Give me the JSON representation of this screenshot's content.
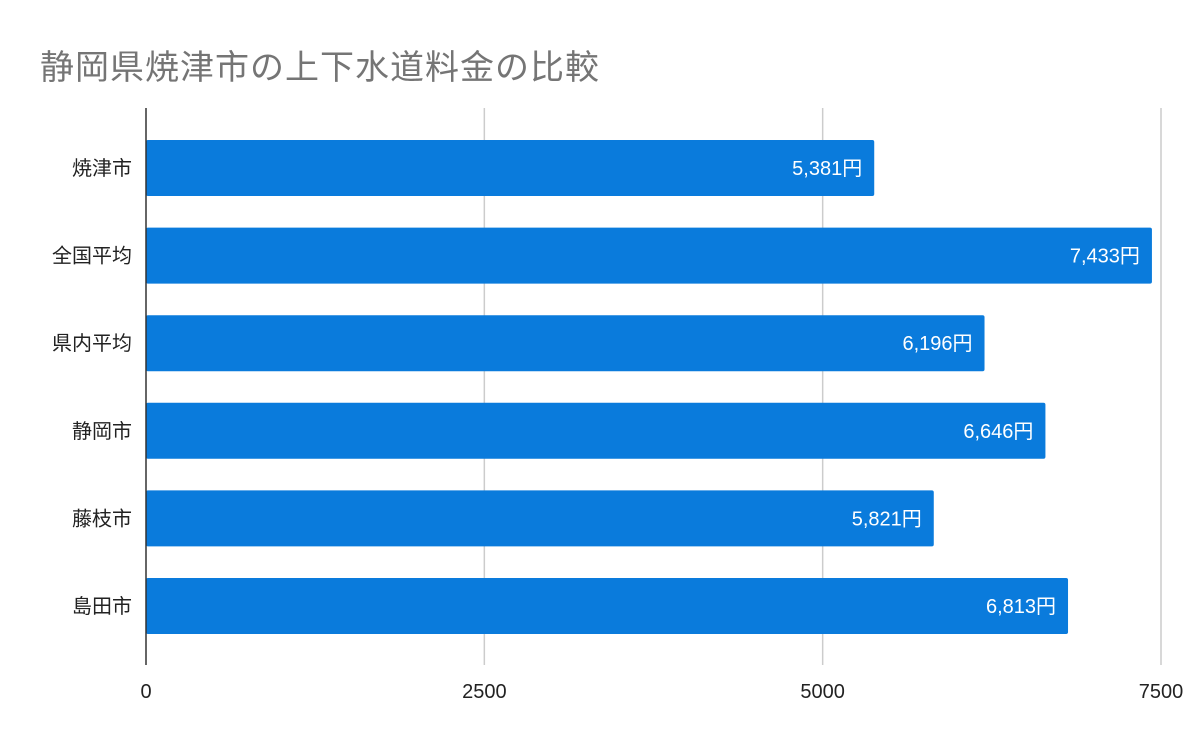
{
  "page": {
    "title": "静岡県焼津市の上下水道料金の比較"
  },
  "chart_data": {
    "type": "bar",
    "orientation": "horizontal",
    "title": "静岡県焼津市の上下水道料金の比較",
    "categories": [
      "焼津市",
      "全国平均",
      "県内平均",
      "静岡市",
      "藤枝市",
      "島田市"
    ],
    "values": [
      5381,
      7433,
      6196,
      6646,
      5821,
      6813
    ],
    "data_labels": [
      "5,381円",
      "7,433円",
      "6,196円",
      "6,646円",
      "5,821円",
      "6,813円"
    ],
    "xlim": [
      0,
      7500
    ],
    "xticks": [
      0,
      2500,
      5000,
      7500
    ],
    "xtick_labels": [
      "0",
      "2500",
      "5000",
      "7500"
    ],
    "xlabel": "",
    "ylabel": "",
    "grid": true,
    "legend": "none",
    "bar_color": "#0a7bdc"
  }
}
